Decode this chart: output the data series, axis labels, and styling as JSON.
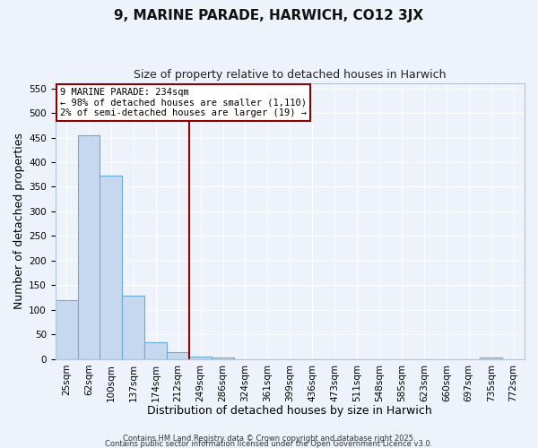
{
  "title": "9, MARINE PARADE, HARWICH, CO12 3JX",
  "subtitle": "Size of property relative to detached houses in Harwich",
  "xlabel": "Distribution of detached houses by size in Harwich",
  "ylabel": "Number of detached properties",
  "bar_labels": [
    "25sqm",
    "62sqm",
    "100sqm",
    "137sqm",
    "174sqm",
    "212sqm",
    "249sqm",
    "286sqm",
    "324sqm",
    "361sqm",
    "399sqm",
    "436sqm",
    "473sqm",
    "511sqm",
    "548sqm",
    "585sqm",
    "623sqm",
    "660sqm",
    "697sqm",
    "735sqm",
    "772sqm"
  ],
  "bar_values": [
    120,
    455,
    372,
    128,
    35,
    14,
    6,
    4,
    0,
    0,
    0,
    0,
    0,
    0,
    0,
    0,
    0,
    0,
    0,
    3,
    0
  ],
  "bar_color": "#c5d8f0",
  "bar_edge_color": "#6aaad4",
  "ylim": [
    0,
    560
  ],
  "yticks": [
    0,
    50,
    100,
    150,
    200,
    250,
    300,
    350,
    400,
    450,
    500,
    550
  ],
  "vline_x_index": 6,
  "vline_color": "#8b0000",
  "annotation_text": "9 MARINE PARADE: 234sqm\n← 98% of detached houses are smaller (1,110)\n2% of semi-detached houses are larger (19) →",
  "annotation_box_color": "#ffffff",
  "annotation_box_edge": "#8b0000",
  "background_color": "#eef2fb",
  "grid_color": "#ffffff",
  "footer1": "Contains HM Land Registry data © Crown copyright and database right 2025.",
  "footer2": "Contains public sector information licensed under the Open Government Licence v3.0.",
  "title_fontsize": 11,
  "subtitle_fontsize": 9,
  "tick_fontsize": 7.5,
  "label_fontsize": 9,
  "annotation_fontsize": 7.5
}
